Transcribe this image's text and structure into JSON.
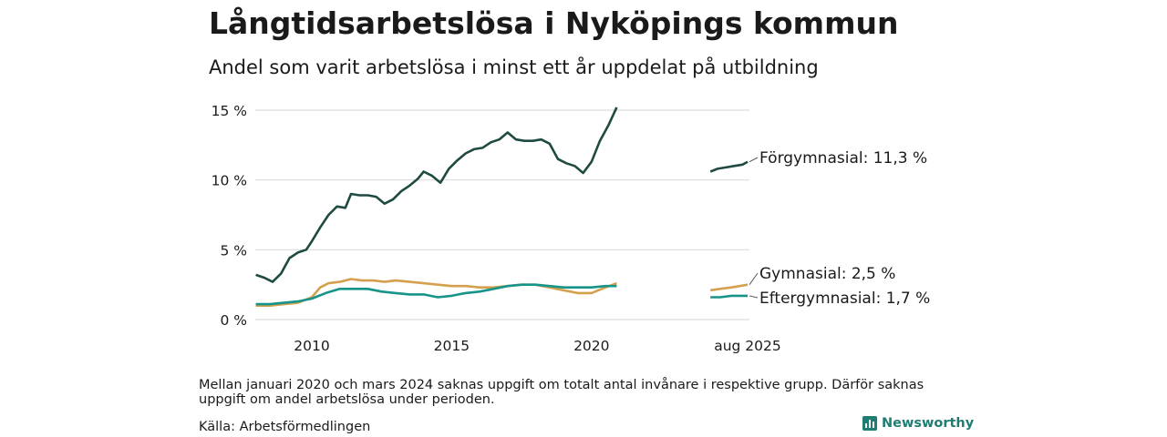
{
  "title": "Långtidsarbetslösa i Nyköpings kommun",
  "subtitle": "Andel som varit arbetslösa i minst ett år uppdelat på utbildning",
  "note": "Mellan januari 2020 och mars 2024 saknas uppgift om totalt antal invånare i respektive grupp. Därför saknas uppgift om andel arbetslösa under perioden.",
  "source": "Källa: Arbetsförmedlingen",
  "logo_text": "Newsworthy",
  "chart_data": {
    "type": "line",
    "title": "Långtidsarbetslösa i Nyköpings kommun",
    "subtitle": "Andel som varit arbetslösa i minst ett år uppdelat på utbildning",
    "y_ticks": [
      "0 %",
      "5 %",
      "10 %",
      "15 %"
    ],
    "y_tick_values": [
      0,
      5,
      10,
      15
    ],
    "ylim": [
      0,
      15
    ],
    "x_ticks": [
      "2010",
      "2015",
      "2020",
      "aug 2025"
    ],
    "x_tick_values": [
      2010,
      2015,
      2020,
      2025.58
    ],
    "xlim": [
      2008.0,
      2025.7
    ],
    "grid": true,
    "colors": {
      "Förgymnasial": "#1f4a42",
      "Gymnasial": "#d4a04e",
      "Eftergymnasial": "#16948a"
    },
    "series": [
      {
        "name": "Förgymnasial",
        "end_label": "Förgymnasial: 11,3 %",
        "segments": [
          [
            [
              2008.0,
              3.2
            ],
            [
              2008.3,
              3.0
            ],
            [
              2008.6,
              2.7
            ],
            [
              2008.9,
              3.3
            ],
            [
              2009.2,
              4.4
            ],
            [
              2009.5,
              4.8
            ],
            [
              2009.8,
              5.0
            ],
            [
              2010.0,
              5.6
            ],
            [
              2010.3,
              6.6
            ],
            [
              2010.6,
              7.5
            ],
            [
              2010.9,
              8.1
            ],
            [
              2011.2,
              8.0
            ],
            [
              2011.4,
              9.0
            ],
            [
              2011.7,
              8.9
            ],
            [
              2012.0,
              8.9
            ],
            [
              2012.3,
              8.8
            ],
            [
              2012.6,
              8.3
            ],
            [
              2012.9,
              8.6
            ],
            [
              2013.2,
              9.2
            ],
            [
              2013.5,
              9.6
            ],
            [
              2013.8,
              10.1
            ],
            [
              2014.0,
              10.6
            ],
            [
              2014.3,
              10.3
            ],
            [
              2014.6,
              9.8
            ],
            [
              2014.9,
              10.8
            ],
            [
              2015.2,
              11.4
            ],
            [
              2015.5,
              11.9
            ],
            [
              2015.8,
              12.2
            ],
            [
              2016.1,
              12.3
            ],
            [
              2016.4,
              12.7
            ],
            [
              2016.7,
              12.9
            ],
            [
              2017.0,
              13.4
            ],
            [
              2017.3,
              12.9
            ],
            [
              2017.6,
              12.8
            ],
            [
              2017.9,
              12.8
            ],
            [
              2018.2,
              12.9
            ],
            [
              2018.5,
              12.6
            ],
            [
              2018.8,
              11.5
            ],
            [
              2019.1,
              11.2
            ],
            [
              2019.4,
              11.0
            ],
            [
              2019.7,
              10.5
            ],
            [
              2020.0,
              11.3
            ],
            [
              2020.3,
              12.8
            ],
            [
              2020.6,
              13.9
            ],
            [
              2020.9,
              15.2
            ]
          ],
          [
            [
              2024.25,
              10.6
            ],
            [
              2024.5,
              10.8
            ],
            [
              2024.8,
              10.9
            ],
            [
              2025.1,
              11.0
            ],
            [
              2025.4,
              11.1
            ],
            [
              2025.58,
              11.3
            ]
          ]
        ]
      },
      {
        "name": "Gymnasial",
        "end_label": "Gymnasial:  2,5 %",
        "segments": [
          [
            [
              2008.0,
              1.0
            ],
            [
              2008.5,
              1.0
            ],
            [
              2009.0,
              1.1
            ],
            [
              2009.5,
              1.2
            ],
            [
              2010.0,
              1.6
            ],
            [
              2010.3,
              2.3
            ],
            [
              2010.6,
              2.6
            ],
            [
              2011.0,
              2.7
            ],
            [
              2011.4,
              2.9
            ],
            [
              2011.8,
              2.8
            ],
            [
              2012.2,
              2.8
            ],
            [
              2012.6,
              2.7
            ],
            [
              2013.0,
              2.8
            ],
            [
              2013.5,
              2.7
            ],
            [
              2014.0,
              2.6
            ],
            [
              2014.5,
              2.5
            ],
            [
              2015.0,
              2.4
            ],
            [
              2015.5,
              2.4
            ],
            [
              2016.0,
              2.3
            ],
            [
              2016.5,
              2.3
            ],
            [
              2017.0,
              2.4
            ],
            [
              2017.5,
              2.5
            ],
            [
              2018.0,
              2.5
            ],
            [
              2018.5,
              2.3
            ],
            [
              2019.0,
              2.1
            ],
            [
              2019.5,
              1.9
            ],
            [
              2020.0,
              1.9
            ],
            [
              2020.5,
              2.3
            ],
            [
              2020.9,
              2.6
            ]
          ],
          [
            [
              2024.25,
              2.1
            ],
            [
              2024.6,
              2.2
            ],
            [
              2025.0,
              2.3
            ],
            [
              2025.3,
              2.4
            ],
            [
              2025.58,
              2.5
            ]
          ]
        ]
      },
      {
        "name": "Eftergymnasial",
        "end_label": "Eftergymnasial:  1,7 %",
        "segments": [
          [
            [
              2008.0,
              1.1
            ],
            [
              2008.5,
              1.1
            ],
            [
              2009.0,
              1.2
            ],
            [
              2009.5,
              1.3
            ],
            [
              2010.0,
              1.5
            ],
            [
              2010.5,
              1.9
            ],
            [
              2011.0,
              2.2
            ],
            [
              2011.5,
              2.2
            ],
            [
              2012.0,
              2.2
            ],
            [
              2012.5,
              2.0
            ],
            [
              2013.0,
              1.9
            ],
            [
              2013.5,
              1.8
            ],
            [
              2014.0,
              1.8
            ],
            [
              2014.5,
              1.6
            ],
            [
              2015.0,
              1.7
            ],
            [
              2015.5,
              1.9
            ],
            [
              2016.0,
              2.0
            ],
            [
              2016.5,
              2.2
            ],
            [
              2017.0,
              2.4
            ],
            [
              2017.5,
              2.5
            ],
            [
              2018.0,
              2.5
            ],
            [
              2018.5,
              2.4
            ],
            [
              2019.0,
              2.3
            ],
            [
              2019.5,
              2.3
            ],
            [
              2020.0,
              2.3
            ],
            [
              2020.5,
              2.4
            ],
            [
              2020.9,
              2.4
            ]
          ],
          [
            [
              2024.25,
              1.6
            ],
            [
              2024.6,
              1.6
            ],
            [
              2025.0,
              1.7
            ],
            [
              2025.3,
              1.7
            ],
            [
              2025.58,
              1.7
            ]
          ]
        ]
      }
    ]
  }
}
